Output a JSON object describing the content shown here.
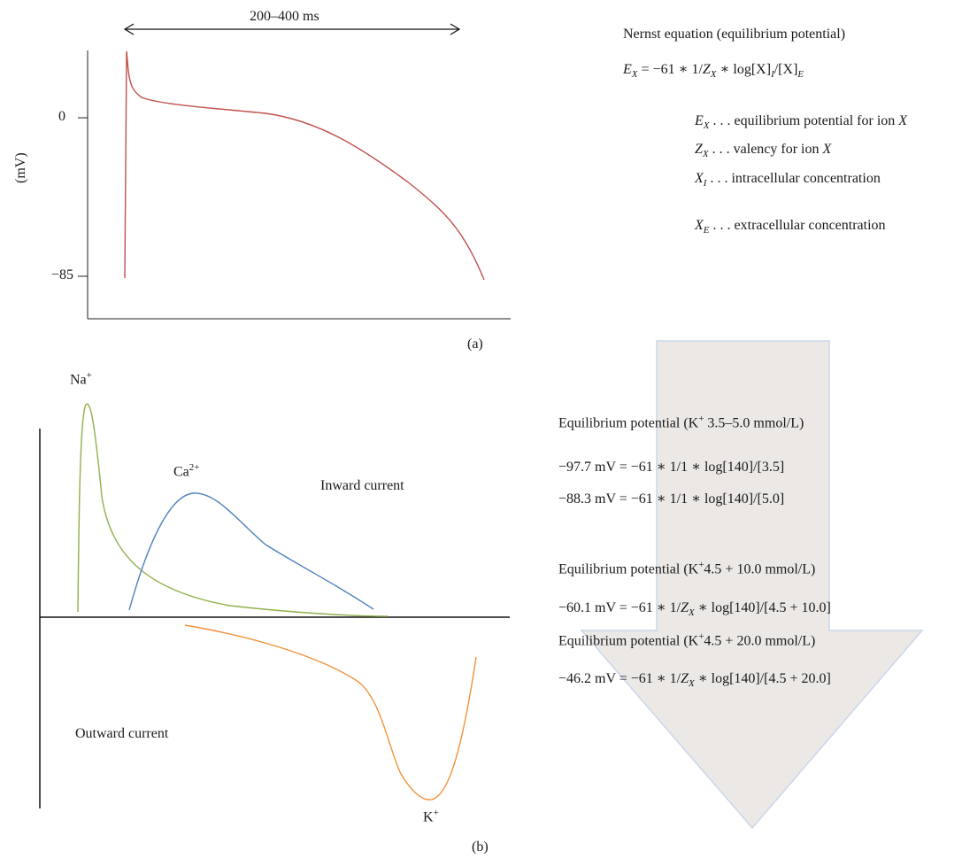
{
  "panel_a": {
    "duration_label": "200–400 ms",
    "y_axis_label": "(mV)",
    "y_ticks": [
      "0",
      "−85"
    ],
    "caption": "(a)",
    "colors": {
      "action_potential": "#c0504d"
    }
  },
  "nernst": {
    "title": "Nernst equation (equilibrium potential)",
    "equation": {
      "lhs": "E",
      "lhs_sub": "X",
      "rhs_part1": " = −61 ∗ 1/",
      "z": "Z",
      "z_sub": "X",
      "rhs_part2": " ∗ log[X]",
      "i_sub": "I",
      "rhs_part3": "/[X]",
      "e_sub": "E"
    },
    "legend": [
      {
        "sym": "E",
        "sub": "X",
        "text": " . . .  equilibrium potential for ion ",
        "ion": "X"
      },
      {
        "sym": "Z",
        "sub": "X",
        "text": " . . . valency for ion ",
        "ion": "X"
      },
      {
        "sym": "X",
        "sub": "I",
        "text": " . . . intracellular concentration",
        "ion": ""
      },
      {
        "sym": "X",
        "sub": "E",
        "text": " . . . extracellular concentration",
        "ion": ""
      }
    ]
  },
  "panel_b": {
    "labels": {
      "na": "Na",
      "na_sup": "+",
      "ca": "Ca",
      "ca_sup": "2+",
      "k": "K",
      "k_sup": "+",
      "inward": "Inward current",
      "outward": "Outward current"
    },
    "caption": "(b)",
    "colors": {
      "na": "#8fb04a",
      "ca": "#4f81bd",
      "k": "#f0923a",
      "arrow_fill": "#ebe8e6",
      "arrow_stroke": "#c9d7ea"
    }
  },
  "equilibrium": {
    "block1_title_a": "Equilibrium potential (K",
    "block1_title_sup": "+",
    "block1_title_b": " 3.5–5.0 mmol/L)",
    "block1_line1": "−97.7 mV = −61 ∗ 1/1 ∗ log[140]/[3.5]",
    "block1_line2": "−88.3 mV = −61 ∗ 1/1 ∗ log[140]/[5.0]",
    "block2_title_a": "Equilibrium potential (K",
    "block2_title_sup": "+",
    "block2_title_b": "4.5 + 10.0 mmol/L)",
    "block2_line_a": "−60.1 mV = −61 ∗ 1/",
    "block2_line_z": "Z",
    "block2_line_zsub": "X",
    "block2_line_b": " ∗ log[140]/[4.5 + 10.0]",
    "block3_title_a": "Equilibrium potential (K",
    "block3_title_sup": "+",
    "block3_title_b": "4.5 + 20.0 mmol/L)",
    "block3_line_a": "−46.2 mV = −61 ∗ 1/",
    "block3_line_z": "Z",
    "block3_line_zsub": "X",
    "block3_line_b": " ∗ log[140]/[4.5 + 20.0]"
  }
}
